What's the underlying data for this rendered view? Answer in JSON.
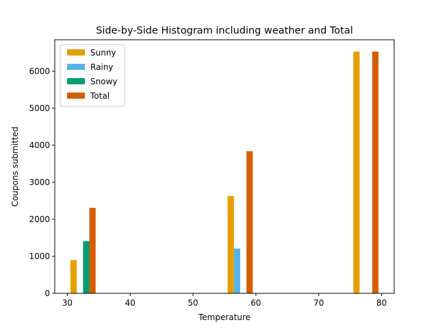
{
  "chart_data": {
    "type": "bar",
    "title": "Side-by-Side Histogram including weather and Total",
    "xlabel": "Temperature",
    "ylabel": "Coupons submitted",
    "xlim": [
      28,
      82
    ],
    "ylim": [
      0,
      6850
    ],
    "xticks": [
      30,
      40,
      50,
      60,
      70,
      80
    ],
    "yticks": [
      0,
      1000,
      2000,
      3000,
      4000,
      5000,
      6000
    ],
    "bar_width": 1,
    "legend": "top-left",
    "grid": false,
    "series": [
      {
        "name": "Sunny",
        "color": "#E69F00",
        "points": [
          {
            "x": 31,
            "y": 900
          },
          {
            "x": 56,
            "y": 2630
          },
          {
            "x": 76,
            "y": 6530
          }
        ]
      },
      {
        "name": "Rainy",
        "color": "#56B4E9",
        "points": [
          {
            "x": 57,
            "y": 1210
          }
        ]
      },
      {
        "name": "Snowy",
        "color": "#009E73",
        "points": [
          {
            "x": 33,
            "y": 1410
          }
        ]
      },
      {
        "name": "Total",
        "color": "#D55E00",
        "points": [
          {
            "x": 34,
            "y": 2310
          },
          {
            "x": 59,
            "y": 3840
          },
          {
            "x": 79,
            "y": 6530
          }
        ]
      }
    ]
  }
}
